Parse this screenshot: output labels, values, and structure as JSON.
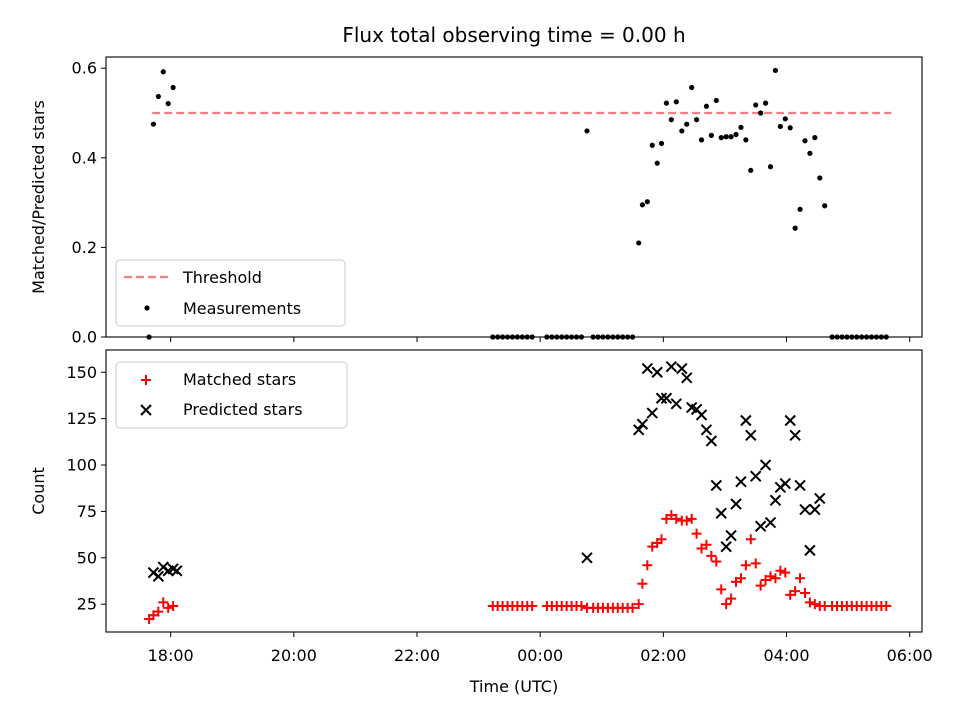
{
  "chart_data": [
    {
      "type": "scatter",
      "panel": "top",
      "title": "Flux total observing time = 0.00 h",
      "ylabel": "Matched/Predicted stars",
      "xlabel": "",
      "x_unit": "hours since 00:00 UTC",
      "xlim": [
        -7.05,
        6.2
      ],
      "ylim": [
        0,
        0.625
      ],
      "yticks": [
        0.0,
        0.2,
        0.4,
        0.6
      ],
      "ytick_labels": [
        "0.0",
        "0.2",
        "0.4",
        "0.6"
      ],
      "xticks": [
        -6,
        -4,
        -2,
        0,
        2,
        4,
        6
      ],
      "grid": false,
      "legend_placement": "lower-left",
      "series": [
        {
          "name": "Threshold",
          "kind": "dashed-line",
          "color": "#f08080",
          "x": [
            -6.3,
            5.7
          ],
          "y": [
            0.5,
            0.5
          ]
        },
        {
          "name": "Measurements",
          "kind": "points",
          "color": "#000000",
          "points": [
            [
              -6.35,
              0.0
            ],
            [
              -6.28,
              0.475
            ],
            [
              -6.2,
              0.537
            ],
            [
              -6.12,
              0.592
            ],
            [
              -6.04,
              0.521
            ],
            [
              -5.96,
              0.557
            ],
            [
              -0.77,
              0.0
            ],
            [
              -0.69,
              0.0
            ],
            [
              -0.61,
              0.0
            ],
            [
              -0.53,
              0.0
            ],
            [
              -0.45,
              0.0
            ],
            [
              -0.37,
              0.0
            ],
            [
              -0.29,
              0.0
            ],
            [
              -0.21,
              0.0
            ],
            [
              -0.13,
              0.0
            ],
            [
              0.11,
              0.0
            ],
            [
              0.19,
              0.0
            ],
            [
              0.27,
              0.0
            ],
            [
              0.35,
              0.0
            ],
            [
              0.43,
              0.0
            ],
            [
              0.51,
              0.0
            ],
            [
              0.59,
              0.0
            ],
            [
              0.67,
              0.0
            ],
            [
              0.76,
              0.46
            ],
            [
              0.86,
              0.0
            ],
            [
              0.94,
              0.0
            ],
            [
              1.02,
              0.0
            ],
            [
              1.1,
              0.0
            ],
            [
              1.18,
              0.0
            ],
            [
              1.26,
              0.0
            ],
            [
              1.34,
              0.0
            ],
            [
              1.42,
              0.0
            ],
            [
              1.5,
              0.0
            ],
            [
              1.6,
              0.21
            ],
            [
              1.66,
              0.295
            ],
            [
              1.74,
              0.302
            ],
            [
              1.82,
              0.428
            ],
            [
              1.9,
              0.388
            ],
            [
              1.97,
              0.432
            ],
            [
              2.05,
              0.522
            ],
            [
              2.13,
              0.485
            ],
            [
              2.21,
              0.525
            ],
            [
              2.3,
              0.46
            ],
            [
              2.38,
              0.475
            ],
            [
              2.46,
              0.557
            ],
            [
              2.54,
              0.485
            ],
            [
              2.62,
              0.44
            ],
            [
              2.7,
              0.515
            ],
            [
              2.78,
              0.45
            ],
            [
              2.86,
              0.528
            ],
            [
              2.94,
              0.445
            ],
            [
              3.02,
              0.447
            ],
            [
              3.1,
              0.447
            ],
            [
              3.18,
              0.452
            ],
            [
              3.26,
              0.468
            ],
            [
              3.34,
              0.44
            ],
            [
              3.42,
              0.372
            ],
            [
              3.5,
              0.518
            ],
            [
              3.58,
              0.5
            ],
            [
              3.66,
              0.522
            ],
            [
              3.74,
              0.38
            ],
            [
              3.82,
              0.595
            ],
            [
              3.9,
              0.47
            ],
            [
              3.98,
              0.487
            ],
            [
              4.06,
              0.467
            ],
            [
              4.14,
              0.243
            ],
            [
              4.22,
              0.285
            ],
            [
              4.3,
              0.438
            ],
            [
              4.38,
              0.41
            ],
            [
              4.46,
              0.445
            ],
            [
              4.54,
              0.355
            ],
            [
              4.62,
              0.293
            ],
            [
              4.74,
              0.0
            ],
            [
              4.82,
              0.0
            ],
            [
              4.9,
              0.0
            ],
            [
              4.98,
              0.0
            ],
            [
              5.06,
              0.0
            ],
            [
              5.14,
              0.0
            ],
            [
              5.22,
              0.0
            ],
            [
              5.3,
              0.0
            ],
            [
              5.38,
              0.0
            ],
            [
              5.46,
              0.0
            ],
            [
              5.54,
              0.0
            ],
            [
              5.62,
              0.0
            ]
          ]
        }
      ]
    },
    {
      "type": "scatter",
      "panel": "bottom",
      "title": "",
      "ylabel": "Count",
      "xlabel": "Time (UTC)",
      "x_unit": "hours since 00:00 UTC",
      "xlim": [
        -7.05,
        6.2
      ],
      "ylim": [
        10,
        162
      ],
      "yticks": [
        25,
        50,
        75,
        100,
        125,
        150
      ],
      "ytick_labels": [
        "25",
        "50",
        "75",
        "100",
        "125",
        "150"
      ],
      "xticks": [
        -6,
        -4,
        -2,
        0,
        2,
        4,
        6
      ],
      "xtick_labels": [
        "18:00",
        "20:00",
        "22:00",
        "00:00",
        "02:00",
        "04:00",
        "06:00"
      ],
      "grid": false,
      "legend_placement": "upper-left",
      "series": [
        {
          "name": "Matched stars",
          "marker": "plus",
          "color": "#ff0000",
          "points": [
            [
              -6.35,
              17
            ],
            [
              -6.28,
              19
            ],
            [
              -6.2,
              21
            ],
            [
              -6.12,
              26
            ],
            [
              -6.04,
              23
            ],
            [
              -5.96,
              24
            ],
            [
              -0.77,
              24
            ],
            [
              -0.69,
              24
            ],
            [
              -0.61,
              24
            ],
            [
              -0.53,
              24
            ],
            [
              -0.45,
              24
            ],
            [
              -0.37,
              24
            ],
            [
              -0.29,
              24
            ],
            [
              -0.21,
              24
            ],
            [
              -0.13,
              24
            ],
            [
              0.11,
              24
            ],
            [
              0.19,
              24
            ],
            [
              0.27,
              24
            ],
            [
              0.35,
              24
            ],
            [
              0.43,
              24
            ],
            [
              0.51,
              24
            ],
            [
              0.59,
              24
            ],
            [
              0.67,
              24
            ],
            [
              0.76,
              23
            ],
            [
              0.86,
              23
            ],
            [
              0.94,
              23
            ],
            [
              1.02,
              23
            ],
            [
              1.1,
              23
            ],
            [
              1.18,
              23
            ],
            [
              1.26,
              23
            ],
            [
              1.34,
              23
            ],
            [
              1.42,
              23
            ],
            [
              1.5,
              23
            ],
            [
              1.6,
              25
            ],
            [
              1.66,
              36
            ],
            [
              1.74,
              46
            ],
            [
              1.82,
              56
            ],
            [
              1.9,
              58
            ],
            [
              1.97,
              60
            ],
            [
              2.05,
              71
            ],
            [
              2.13,
              73
            ],
            [
              2.21,
              71
            ],
            [
              2.3,
              70
            ],
            [
              2.38,
              70
            ],
            [
              2.46,
              71
            ],
            [
              2.54,
              63
            ],
            [
              2.62,
              55
            ],
            [
              2.7,
              57
            ],
            [
              2.78,
              51
            ],
            [
              2.86,
              48
            ],
            [
              2.94,
              33
            ],
            [
              3.02,
              25
            ],
            [
              3.1,
              28
            ],
            [
              3.18,
              37
            ],
            [
              3.26,
              39
            ],
            [
              3.34,
              46
            ],
            [
              3.42,
              60
            ],
            [
              3.5,
              47
            ],
            [
              3.58,
              35
            ],
            [
              3.66,
              38
            ],
            [
              3.74,
              40
            ],
            [
              3.82,
              39
            ],
            [
              3.9,
              43
            ],
            [
              3.98,
              42
            ],
            [
              4.06,
              30
            ],
            [
              4.14,
              32
            ],
            [
              4.22,
              39
            ],
            [
              4.3,
              31
            ],
            [
              4.38,
              26
            ],
            [
              4.46,
              25
            ],
            [
              4.54,
              24
            ],
            [
              4.62,
              24
            ],
            [
              4.74,
              24
            ],
            [
              4.82,
              24
            ],
            [
              4.9,
              24
            ],
            [
              4.98,
              24
            ],
            [
              5.06,
              24
            ],
            [
              5.14,
              24
            ],
            [
              5.22,
              24
            ],
            [
              5.3,
              24
            ],
            [
              5.38,
              24
            ],
            [
              5.46,
              24
            ],
            [
              5.54,
              24
            ],
            [
              5.62,
              24
            ]
          ]
        },
        {
          "name": "Predicted stars",
          "marker": "x",
          "color": "#000000",
          "points": [
            [
              -6.28,
              42
            ],
            [
              -6.2,
              40
            ],
            [
              -6.12,
              45
            ],
            [
              -6.04,
              43
            ],
            [
              -5.96,
              44
            ],
            [
              -5.9,
              43
            ],
            [
              0.76,
              50
            ],
            [
              1.6,
              119
            ],
            [
              1.66,
              122
            ],
            [
              1.74,
              152
            ],
            [
              1.82,
              128
            ],
            [
              1.9,
              150
            ],
            [
              1.97,
              136
            ],
            [
              2.05,
              136
            ],
            [
              2.13,
              153
            ],
            [
              2.21,
              133
            ],
            [
              2.3,
              152
            ],
            [
              2.38,
              147
            ],
            [
              2.46,
              131
            ],
            [
              2.54,
              130
            ],
            [
              2.62,
              127
            ],
            [
              2.7,
              119
            ],
            [
              2.78,
              113
            ],
            [
              2.86,
              89
            ],
            [
              2.94,
              74
            ],
            [
              3.02,
              56
            ],
            [
              3.1,
              62
            ],
            [
              3.18,
              79
            ],
            [
              3.26,
              91
            ],
            [
              3.34,
              124
            ],
            [
              3.42,
              116
            ],
            [
              3.5,
              94
            ],
            [
              3.58,
              67
            ],
            [
              3.66,
              100
            ],
            [
              3.74,
              69
            ],
            [
              3.82,
              81
            ],
            [
              3.9,
              88
            ],
            [
              3.98,
              90
            ],
            [
              4.06,
              124
            ],
            [
              4.14,
              116
            ],
            [
              4.22,
              89
            ],
            [
              4.3,
              76
            ],
            [
              4.38,
              54
            ],
            [
              4.46,
              76
            ],
            [
              4.54,
              82
            ]
          ]
        }
      ]
    }
  ]
}
